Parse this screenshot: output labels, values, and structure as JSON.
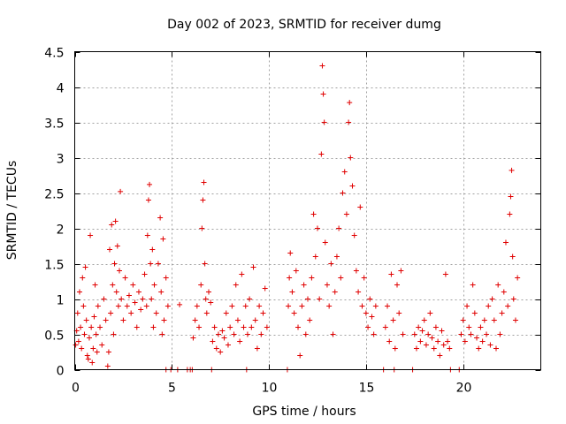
{
  "chart_data": {
    "type": "scatter",
    "title": "Day 002 of 2023, SRMTID for receiver dumg",
    "xlabel": "GPS time / hours",
    "ylabel": "SRMTID / TECUs",
    "xlim": [
      0,
      24
    ],
    "ylim": [
      0,
      4.5
    ],
    "x_ticks": [
      0,
      5,
      10,
      15,
      20
    ],
    "y_ticks": [
      0,
      0.5,
      1,
      1.5,
      2,
      2.5,
      3,
      3.5,
      4,
      4.5
    ],
    "x_tick_labels": [
      "0",
      "5",
      "10",
      "15",
      "20"
    ],
    "y_tick_labels": [
      "0",
      "0.5",
      "1",
      "1.5",
      "2",
      "2.5",
      "3",
      "3.5",
      "4",
      "4.5"
    ],
    "grid": true,
    "marker": "+",
    "color": "#e00000",
    "series": [
      {
        "name": "SRMTID",
        "points": [
          [
            0.05,
            0.35
          ],
          [
            0.1,
            0.55
          ],
          [
            0.15,
            0.8
          ],
          [
            0.2,
            0.4
          ],
          [
            0.25,
            1.1
          ],
          [
            0.3,
            0.6
          ],
          [
            0.35,
            0.3
          ],
          [
            0.4,
            1.3
          ],
          [
            0.45,
            0.9
          ],
          [
            0.5,
            0.5
          ],
          [
            0.55,
            1.45
          ],
          [
            0.6,
            0.7
          ],
          [
            0.65,
            0.2
          ],
          [
            0.7,
            0.15
          ],
          [
            0.75,
            0.45
          ],
          [
            0.8,
            1.9
          ],
          [
            0.85,
            0.6
          ],
          [
            0.9,
            0.1
          ],
          [
            0.95,
            0.3
          ],
          [
            1.0,
            0.75
          ],
          [
            1.05,
            1.2
          ],
          [
            1.1,
            0.5
          ],
          [
            1.15,
            0.25
          ],
          [
            1.2,
            0.9
          ],
          [
            1.3,
            0.6
          ],
          [
            1.4,
            0.35
          ],
          [
            1.5,
            1.0
          ],
          [
            1.6,
            0.7
          ],
          [
            1.7,
            0.05
          ],
          [
            1.75,
            0.25
          ],
          [
            1.8,
            1.7
          ],
          [
            1.85,
            0.8
          ],
          [
            1.9,
            2.05
          ],
          [
            1.95,
            1.2
          ],
          [
            2.0,
            0.5
          ],
          [
            2.05,
            1.5
          ],
          [
            2.1,
            2.1
          ],
          [
            2.15,
            1.1
          ],
          [
            2.2,
            1.75
          ],
          [
            2.25,
            0.9
          ],
          [
            2.3,
            1.4
          ],
          [
            2.35,
            2.52
          ],
          [
            2.4,
            1.0
          ],
          [
            2.5,
            0.7
          ],
          [
            2.6,
            1.3
          ],
          [
            2.7,
            0.9
          ],
          [
            2.8,
            1.05
          ],
          [
            2.9,
            0.8
          ],
          [
            3.0,
            1.2
          ],
          [
            3.1,
            0.95
          ],
          [
            3.2,
            0.6
          ],
          [
            3.3,
            1.1
          ],
          [
            3.4,
            0.85
          ],
          [
            3.5,
            1.0
          ],
          [
            3.6,
            1.35
          ],
          [
            3.7,
            0.9
          ],
          [
            3.75,
            1.9
          ],
          [
            3.8,
            2.4
          ],
          [
            3.85,
            2.62
          ],
          [
            3.9,
            1.5
          ],
          [
            3.95,
            1.0
          ],
          [
            4.0,
            1.7
          ],
          [
            4.05,
            0.6
          ],
          [
            4.1,
            1.2
          ],
          [
            4.2,
            0.8
          ],
          [
            4.3,
            1.5
          ],
          [
            4.4,
            2.15
          ],
          [
            4.45,
            1.1
          ],
          [
            4.5,
            0.5
          ],
          [
            4.55,
            1.85
          ],
          [
            4.6,
            0.7
          ],
          [
            4.7,
            1.3
          ],
          [
            4.8,
            0.9
          ],
          [
            4.7,
            0.0
          ],
          [
            4.95,
            0.0
          ],
          [
            5.3,
            0.0
          ],
          [
            5.4,
            0.92
          ],
          [
            5.8,
            0.0
          ],
          [
            5.95,
            0.0
          ],
          [
            6.05,
            0.0
          ],
          [
            6.1,
            0.45
          ],
          [
            6.2,
            0.7
          ],
          [
            6.3,
            0.9
          ],
          [
            6.4,
            0.6
          ],
          [
            6.5,
            1.2
          ],
          [
            6.55,
            2.0
          ],
          [
            6.6,
            2.4
          ],
          [
            6.65,
            2.65
          ],
          [
            6.7,
            1.5
          ],
          [
            6.75,
            1.0
          ],
          [
            6.8,
            0.8
          ],
          [
            6.9,
            1.1
          ],
          [
            7.0,
            0.95
          ],
          [
            7.05,
            0.0
          ],
          [
            7.1,
            0.4
          ],
          [
            7.2,
            0.6
          ],
          [
            7.3,
            0.3
          ],
          [
            7.4,
            0.5
          ],
          [
            7.5,
            0.25
          ],
          [
            7.6,
            0.55
          ],
          [
            7.7,
            0.45
          ],
          [
            7.8,
            0.8
          ],
          [
            7.9,
            0.35
          ],
          [
            8.0,
            0.6
          ],
          [
            8.1,
            0.9
          ],
          [
            8.2,
            0.5
          ],
          [
            8.3,
            1.2
          ],
          [
            8.4,
            0.7
          ],
          [
            8.5,
            0.4
          ],
          [
            8.6,
            1.35
          ],
          [
            8.7,
            0.6
          ],
          [
            8.8,
            0.9
          ],
          [
            8.9,
            0.5
          ],
          [
            9.0,
            1.0
          ],
          [
            9.1,
            0.6
          ],
          [
            9.2,
            1.45
          ],
          [
            9.3,
            0.7
          ],
          [
            9.4,
            0.3
          ],
          [
            9.5,
            0.9
          ],
          [
            9.6,
            0.5
          ],
          [
            9.7,
            0.8
          ],
          [
            9.8,
            1.15
          ],
          [
            9.9,
            0.6
          ],
          [
            8.85,
            0.0
          ],
          [
            10.95,
            0.0
          ],
          [
            11.0,
            0.9
          ],
          [
            11.05,
            1.3
          ],
          [
            11.1,
            1.65
          ],
          [
            11.2,
            1.1
          ],
          [
            11.3,
            0.8
          ],
          [
            11.4,
            1.4
          ],
          [
            11.5,
            0.6
          ],
          [
            11.6,
            0.2
          ],
          [
            11.7,
            0.9
          ],
          [
            11.8,
            1.2
          ],
          [
            11.9,
            0.5
          ],
          [
            12.0,
            1.0
          ],
          [
            12.1,
            0.7
          ],
          [
            12.2,
            1.3
          ],
          [
            12.3,
            2.2
          ],
          [
            12.4,
            1.6
          ],
          [
            12.5,
            2.0
          ],
          [
            12.6,
            1.0
          ],
          [
            12.7,
            3.05
          ],
          [
            12.75,
            4.3
          ],
          [
            12.8,
            3.9
          ],
          [
            12.85,
            3.5
          ],
          [
            12.9,
            1.8
          ],
          [
            13.0,
            1.2
          ],
          [
            13.1,
            0.9
          ],
          [
            13.2,
            1.5
          ],
          [
            13.3,
            0.5
          ],
          [
            13.4,
            1.1
          ],
          [
            13.5,
            1.6
          ],
          [
            13.6,
            2.0
          ],
          [
            13.7,
            1.3
          ],
          [
            13.8,
            2.5
          ],
          [
            13.9,
            2.8
          ],
          [
            14.0,
            2.2
          ],
          [
            14.1,
            3.5
          ],
          [
            14.15,
            3.78
          ],
          [
            14.2,
            3.0
          ],
          [
            14.3,
            2.6
          ],
          [
            14.4,
            1.9
          ],
          [
            14.5,
            1.4
          ],
          [
            14.6,
            1.1
          ],
          [
            14.7,
            2.3
          ],
          [
            14.8,
            0.9
          ],
          [
            14.9,
            1.3
          ],
          [
            15.0,
            0.8
          ],
          [
            15.1,
            0.6
          ],
          [
            15.2,
            1.0
          ],
          [
            15.3,
            0.75
          ],
          [
            15.4,
            0.5
          ],
          [
            15.5,
            0.9
          ],
          [
            15.9,
            0.0
          ],
          [
            16.0,
            0.6
          ],
          [
            16.1,
            0.9
          ],
          [
            16.2,
            0.4
          ],
          [
            16.3,
            1.35
          ],
          [
            16.4,
            0.7
          ],
          [
            16.45,
            0.0
          ],
          [
            16.5,
            0.3
          ],
          [
            16.6,
            1.2
          ],
          [
            16.7,
            0.8
          ],
          [
            16.8,
            1.4
          ],
          [
            16.9,
            0.5
          ],
          [
            17.4,
            0.0
          ],
          [
            17.5,
            0.5
          ],
          [
            17.6,
            0.3
          ],
          [
            17.7,
            0.6
          ],
          [
            17.8,
            0.4
          ],
          [
            17.9,
            0.55
          ],
          [
            18.0,
            0.7
          ],
          [
            18.1,
            0.35
          ],
          [
            18.2,
            0.5
          ],
          [
            18.3,
            0.8
          ],
          [
            18.4,
            0.45
          ],
          [
            18.5,
            0.3
          ],
          [
            18.6,
            0.6
          ],
          [
            18.7,
            0.4
          ],
          [
            18.8,
            0.2
          ],
          [
            18.9,
            0.55
          ],
          [
            19.0,
            0.35
          ],
          [
            19.1,
            1.35
          ],
          [
            19.2,
            0.4
          ],
          [
            19.3,
            0.3
          ],
          [
            19.35,
            0.0
          ],
          [
            19.8,
            0.0
          ],
          [
            19.9,
            0.5
          ],
          [
            20.0,
            0.7
          ],
          [
            20.1,
            0.4
          ],
          [
            20.2,
            0.9
          ],
          [
            20.3,
            0.6
          ],
          [
            20.4,
            0.5
          ],
          [
            20.5,
            1.2
          ],
          [
            20.6,
            0.8
          ],
          [
            20.7,
            0.45
          ],
          [
            20.8,
            0.3
          ],
          [
            20.9,
            0.6
          ],
          [
            21.0,
            0.4
          ],
          [
            21.1,
            0.7
          ],
          [
            21.2,
            0.5
          ],
          [
            21.3,
            0.9
          ],
          [
            21.4,
            0.35
          ],
          [
            21.5,
            1.0
          ],
          [
            21.6,
            0.7
          ],
          [
            21.7,
            0.3
          ],
          [
            21.8,
            1.2
          ],
          [
            21.9,
            0.5
          ],
          [
            22.0,
            0.8
          ],
          [
            22.1,
            1.1
          ],
          [
            22.2,
            1.8
          ],
          [
            22.3,
            0.9
          ],
          [
            22.4,
            2.2
          ],
          [
            22.45,
            2.45
          ],
          [
            22.5,
            2.82
          ],
          [
            22.55,
            1.6
          ],
          [
            22.6,
            1.0
          ],
          [
            22.7,
            0.7
          ],
          [
            22.8,
            1.3
          ]
        ]
      }
    ]
  }
}
